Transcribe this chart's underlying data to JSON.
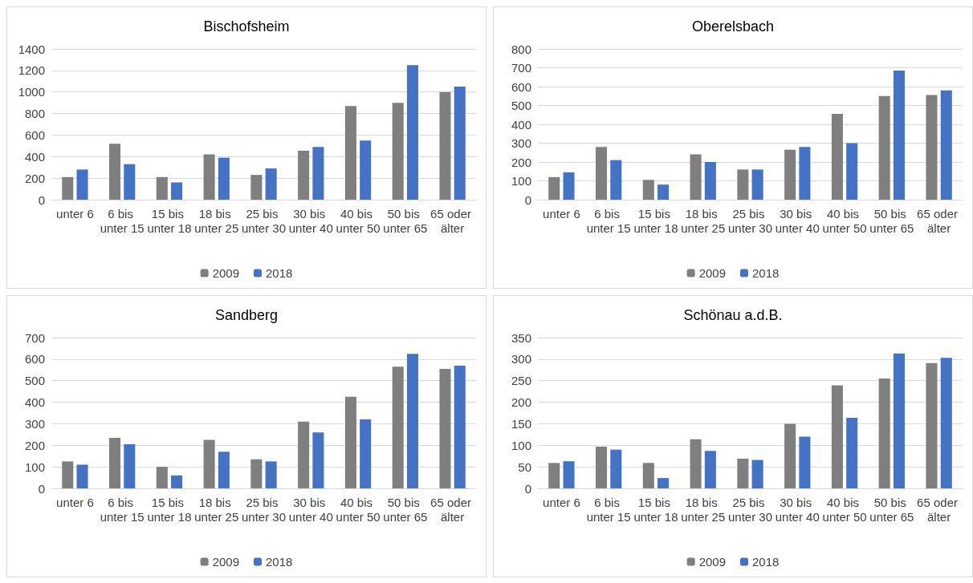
{
  "chart_data": [
    {
      "type": "bar",
      "title": "Bischofsheim",
      "categories": [
        "unter 6",
        "6 bis unter 15",
        "15 bis unter 18",
        "18 bis unter 25",
        "25 bis unter 30",
        "30 bis unter 40",
        "40 bis unter 50",
        "50 bis unter 65",
        "65 oder älter"
      ],
      "series": [
        {
          "name": "2009",
          "color": "#7f7f7f",
          "values": [
            210,
            520,
            210,
            420,
            230,
            455,
            870,
            900,
            1000
          ]
        },
        {
          "name": "2018",
          "color": "#4472c4",
          "values": [
            280,
            330,
            160,
            390,
            290,
            490,
            550,
            1250,
            1050
          ]
        }
      ],
      "ylim": [
        0,
        1400
      ],
      "yticks": [
        0,
        200,
        400,
        600,
        800,
        1000,
        1200,
        1400
      ],
      "grid": "y",
      "legend": "bottom"
    },
    {
      "type": "bar",
      "title": "Oberelsbach",
      "categories": [
        "unter 6",
        "6 bis unter 15",
        "15 bis unter 18",
        "18 bis unter 25",
        "25 bis unter 30",
        "30 bis unter 40",
        "40 bis unter 50",
        "50 bis unter 65",
        "65 oder älter"
      ],
      "series": [
        {
          "name": "2009",
          "color": "#7f7f7f",
          "values": [
            120,
            280,
            105,
            240,
            160,
            265,
            455,
            550,
            555
          ]
        },
        {
          "name": "2018",
          "color": "#4472c4",
          "values": [
            145,
            210,
            80,
            200,
            160,
            280,
            300,
            685,
            580
          ]
        }
      ],
      "ylim": [
        0,
        800
      ],
      "yticks": [
        0,
        100,
        200,
        300,
        400,
        500,
        600,
        700,
        800
      ],
      "grid": "y",
      "legend": "bottom"
    },
    {
      "type": "bar",
      "title": "Sandberg",
      "categories": [
        "unter 6",
        "6 bis unter 15",
        "15 bis unter 18",
        "18 bis unter 25",
        "25 bis unter 30",
        "30 bis unter 40",
        "40 bis unter 50",
        "50 bis unter 65",
        "65 oder älter"
      ],
      "series": [
        {
          "name": "2009",
          "color": "#7f7f7f",
          "values": [
            125,
            235,
            100,
            225,
            135,
            310,
            425,
            565,
            555
          ]
        },
        {
          "name": "2018",
          "color": "#4472c4",
          "values": [
            110,
            205,
            60,
            170,
            125,
            260,
            320,
            625,
            570
          ]
        }
      ],
      "ylim": [
        0,
        700
      ],
      "yticks": [
        0,
        100,
        200,
        300,
        400,
        500,
        600,
        700
      ],
      "grid": "y",
      "legend": "bottom"
    },
    {
      "type": "bar",
      "title": "Schönau a.d.B.",
      "categories": [
        "unter 6",
        "6 bis unter 15",
        "15 bis unter 18",
        "18 bis unter 25",
        "25 bis unter 30",
        "30 bis unter 40",
        "40 bis unter 50",
        "50 bis unter 65",
        "65 oder älter"
      ],
      "series": [
        {
          "name": "2009",
          "color": "#7f7f7f",
          "values": [
            59,
            97,
            59,
            114,
            69,
            150,
            239,
            255,
            291
          ]
        },
        {
          "name": "2018",
          "color": "#4472c4",
          "values": [
            63,
            90,
            24,
            87,
            66,
            120,
            164,
            313,
            303
          ]
        }
      ],
      "ylim": [
        0,
        350
      ],
      "yticks": [
        0,
        50,
        100,
        150,
        200,
        250,
        300,
        350
      ],
      "grid": "y",
      "legend": "bottom"
    }
  ]
}
